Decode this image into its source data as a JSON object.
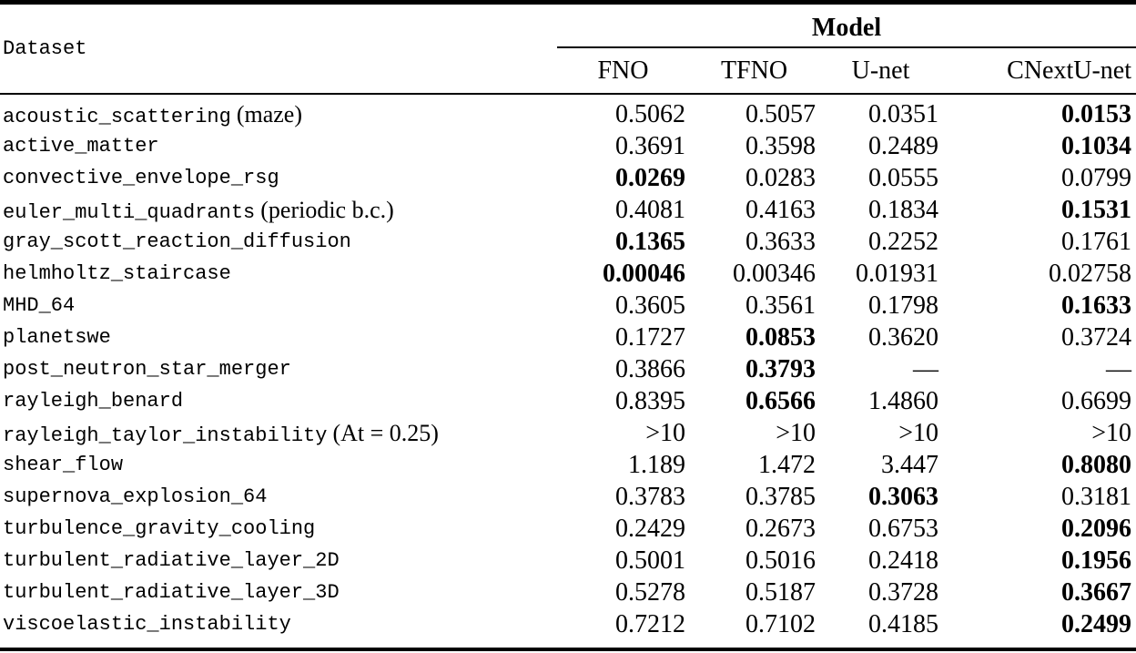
{
  "table": {
    "row_header_label": "Dataset",
    "group_header": "Model",
    "columns": [
      "FNO",
      "TFNO",
      "U-net",
      "CNextU-net"
    ],
    "rows": [
      {
        "name": "acoustic_scattering",
        "note": "(maze)",
        "values": [
          "0.5062",
          "0.5057",
          "0.0351",
          "0.0153"
        ],
        "bold_indices": [
          3
        ]
      },
      {
        "name": "active_matter",
        "note": "",
        "values": [
          "0.3691",
          "0.3598",
          "0.2489",
          "0.1034"
        ],
        "bold_indices": [
          3
        ]
      },
      {
        "name": "convective_envelope_rsg",
        "note": "",
        "values": [
          "0.0269",
          "0.0283",
          "0.0555",
          "0.0799"
        ],
        "bold_indices": [
          0
        ]
      },
      {
        "name": "euler_multi_quadrants",
        "note": "(periodic b.c.)",
        "values": [
          "0.4081",
          "0.4163",
          "0.1834",
          "0.1531"
        ],
        "bold_indices": [
          3
        ]
      },
      {
        "name": "gray_scott_reaction_diffusion",
        "note": "",
        "values": [
          "0.1365",
          "0.3633",
          "0.2252",
          "0.1761"
        ],
        "bold_indices": [
          0
        ]
      },
      {
        "name": "helmholtz_staircase",
        "note": "",
        "values": [
          "0.00046",
          "0.00346",
          "0.01931",
          "0.02758"
        ],
        "bold_indices": [
          0
        ]
      },
      {
        "name": "MHD_64",
        "note": "",
        "values": [
          "0.3605",
          "0.3561",
          "0.1798",
          "0.1633"
        ],
        "bold_indices": [
          3
        ]
      },
      {
        "name": "planetswe",
        "note": "",
        "values": [
          "0.1727",
          "0.0853",
          "0.3620",
          "0.3724"
        ],
        "bold_indices": [
          1
        ]
      },
      {
        "name": "post_neutron_star_merger",
        "note": "",
        "values": [
          "0.3866",
          "0.3793",
          "—",
          "—"
        ],
        "bold_indices": [
          1
        ]
      },
      {
        "name": "rayleigh_benard",
        "note": "",
        "values": [
          "0.8395",
          "0.6566",
          "1.4860",
          "0.6699"
        ],
        "bold_indices": [
          1
        ]
      },
      {
        "name": "rayleigh_taylor_instability",
        "note": "(At = 0.25)",
        "values": [
          ">10",
          ">10",
          ">10",
          ">10"
        ],
        "bold_indices": []
      },
      {
        "name": "shear_flow",
        "note": "",
        "values": [
          "1.189",
          "1.472",
          "3.447",
          "0.8080"
        ],
        "bold_indices": [
          3
        ]
      },
      {
        "name": "supernova_explosion_64",
        "note": "",
        "values": [
          "0.3783",
          "0.3785",
          "0.3063",
          "0.3181"
        ],
        "bold_indices": [
          2
        ]
      },
      {
        "name": "turbulence_gravity_cooling",
        "note": "",
        "values": [
          "0.2429",
          "0.2673",
          "0.6753",
          "0.2096"
        ],
        "bold_indices": [
          3
        ]
      },
      {
        "name": "turbulent_radiative_layer_2D",
        "note": "",
        "values": [
          "0.5001",
          "0.5016",
          "0.2418",
          "0.1956"
        ],
        "bold_indices": [
          3
        ]
      },
      {
        "name": "turbulent_radiative_layer_3D",
        "note": "",
        "values": [
          "0.5278",
          "0.5187",
          "0.3728",
          "0.3667"
        ],
        "bold_indices": [
          3
        ]
      },
      {
        "name": "viscoelastic_instability",
        "note": "",
        "values": [
          "0.7212",
          "0.7102",
          "0.4185",
          "0.2499"
        ],
        "bold_indices": [
          3
        ]
      }
    ]
  },
  "colors": {
    "background": "#ffffff",
    "text": "#000000",
    "rule": "#000000"
  }
}
